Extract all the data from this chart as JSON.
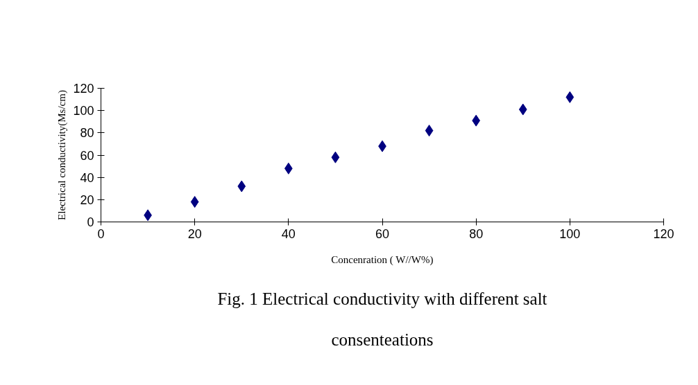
{
  "chart_data": {
    "type": "scatter",
    "title": "Fig. 1 Electrical conductivity with different salt consenteations",
    "xlabel": "Concenration ( W//W%)",
    "ylabel": "Electrical conductivity(Ms/cm)",
    "x": [
      10,
      20,
      30,
      40,
      50,
      60,
      70,
      80,
      90,
      100
    ],
    "series": [
      {
        "color": "#000080",
        "values": [
          6,
          18,
          32,
          48,
          58,
          68,
          82,
          91,
          101,
          112
        ]
      }
    ],
    "xlim": [
      0,
      120
    ],
    "xticks": [
      0,
      20,
      40,
      60,
      80,
      100,
      120
    ],
    "ylim": [
      0,
      120
    ],
    "yticks": [
      0,
      20,
      40,
      60,
      80,
      100,
      120
    ],
    "grid": false,
    "marker": "diamond"
  }
}
